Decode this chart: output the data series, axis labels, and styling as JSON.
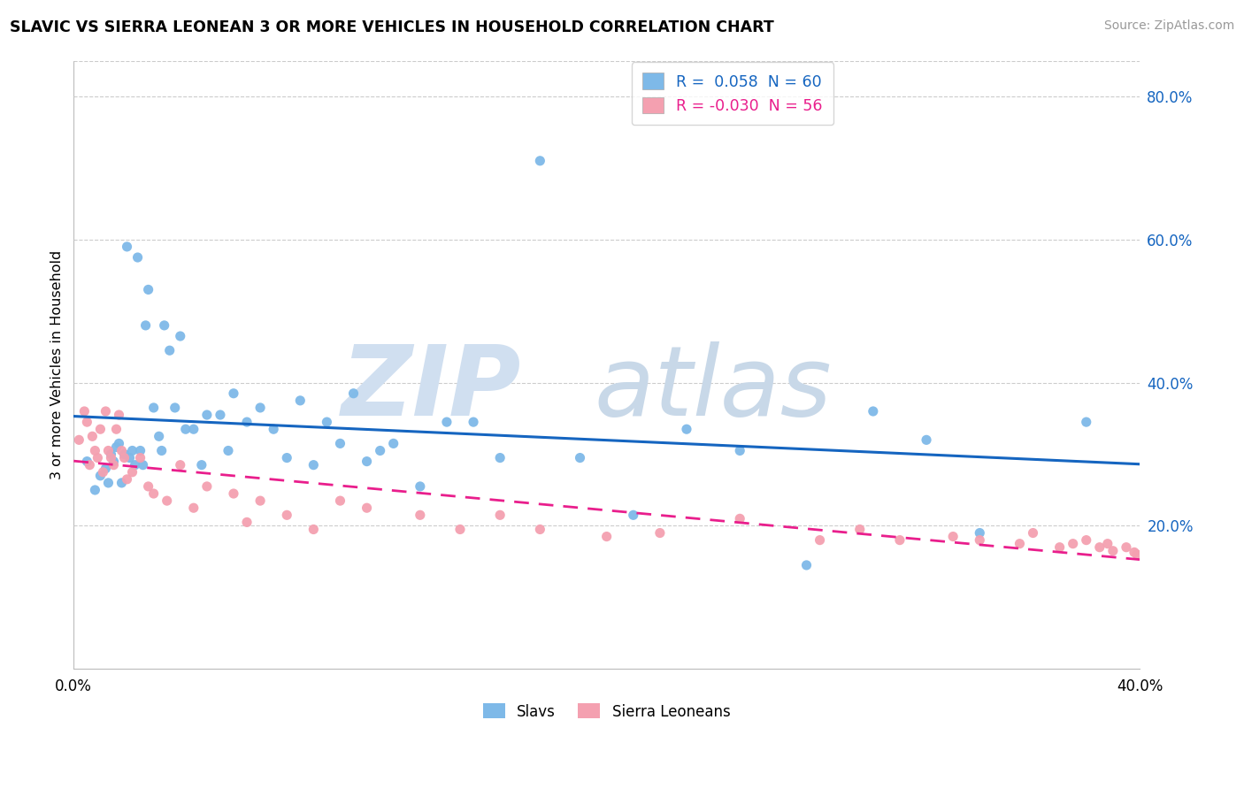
{
  "title": "SLAVIC VS SIERRA LEONEAN 3 OR MORE VEHICLES IN HOUSEHOLD CORRELATION CHART",
  "source": "Source: ZipAtlas.com",
  "ylabel": "3 or more Vehicles in Household",
  "xlim": [
    0.0,
    0.4
  ],
  "ylim": [
    0.0,
    0.85
  ],
  "x_tick_labels": [
    "0.0%",
    "",
    "",
    "",
    "40.0%"
  ],
  "y_ticks_right": [
    0.2,
    0.4,
    0.6,
    0.8
  ],
  "y_tick_labels_right": [
    "20.0%",
    "40.0%",
    "60.0%",
    "80.0%"
  ],
  "color_slavs": "#7EB9E8",
  "color_sierra": "#F4A0B0",
  "line_color_slavs": "#1565C0",
  "line_color_sierra": "#E91E8C",
  "legend_r1": "R =  0.058  N = 60",
  "legend_r2": "R = -0.030  N = 56",
  "legend_label1": "Slavs",
  "legend_label2": "Sierra Leoneans",
  "slavs_x": [
    0.005,
    0.008,
    0.01,
    0.012,
    0.013,
    0.014,
    0.015,
    0.016,
    0.017,
    0.018,
    0.019,
    0.02,
    0.021,
    0.022,
    0.023,
    0.024,
    0.025,
    0.026,
    0.027,
    0.028,
    0.03,
    0.032,
    0.033,
    0.034,
    0.036,
    0.038,
    0.04,
    0.042,
    0.045,
    0.048,
    0.05,
    0.055,
    0.058,
    0.06,
    0.065,
    0.07,
    0.075,
    0.08,
    0.085,
    0.09,
    0.095,
    0.1,
    0.105,
    0.11,
    0.115,
    0.12,
    0.13,
    0.14,
    0.15,
    0.16,
    0.175,
    0.19,
    0.21,
    0.23,
    0.25,
    0.275,
    0.3,
    0.32,
    0.34,
    0.38
  ],
  "slavs_y": [
    0.29,
    0.25,
    0.27,
    0.28,
    0.26,
    0.3,
    0.29,
    0.31,
    0.315,
    0.26,
    0.3,
    0.59,
    0.295,
    0.305,
    0.285,
    0.575,
    0.305,
    0.285,
    0.48,
    0.53,
    0.365,
    0.325,
    0.305,
    0.48,
    0.445,
    0.365,
    0.465,
    0.335,
    0.335,
    0.285,
    0.355,
    0.355,
    0.305,
    0.385,
    0.345,
    0.365,
    0.335,
    0.295,
    0.375,
    0.285,
    0.345,
    0.315,
    0.385,
    0.29,
    0.305,
    0.315,
    0.255,
    0.345,
    0.345,
    0.295,
    0.71,
    0.295,
    0.215,
    0.335,
    0.305,
    0.145,
    0.36,
    0.32,
    0.19,
    0.345
  ],
  "sierra_x": [
    0.002,
    0.004,
    0.005,
    0.006,
    0.007,
    0.008,
    0.009,
    0.01,
    0.011,
    0.012,
    0.013,
    0.014,
    0.015,
    0.016,
    0.017,
    0.018,
    0.019,
    0.02,
    0.022,
    0.025,
    0.028,
    0.03,
    0.035,
    0.04,
    0.045,
    0.05,
    0.06,
    0.065,
    0.07,
    0.08,
    0.09,
    0.1,
    0.11,
    0.13,
    0.145,
    0.16,
    0.175,
    0.2,
    0.22,
    0.25,
    0.28,
    0.295,
    0.31,
    0.33,
    0.34,
    0.355,
    0.36,
    0.37,
    0.375,
    0.38,
    0.385,
    0.388,
    0.39,
    0.395,
    0.398,
    0.399
  ],
  "sierra_y": [
    0.32,
    0.36,
    0.345,
    0.285,
    0.325,
    0.305,
    0.295,
    0.335,
    0.275,
    0.36,
    0.305,
    0.295,
    0.285,
    0.335,
    0.355,
    0.305,
    0.295,
    0.265,
    0.275,
    0.295,
    0.255,
    0.245,
    0.235,
    0.285,
    0.225,
    0.255,
    0.245,
    0.205,
    0.235,
    0.215,
    0.195,
    0.235,
    0.225,
    0.215,
    0.195,
    0.215,
    0.195,
    0.185,
    0.19,
    0.21,
    0.18,
    0.195,
    0.18,
    0.185,
    0.18,
    0.175,
    0.19,
    0.17,
    0.175,
    0.18,
    0.17,
    0.175,
    0.165,
    0.17,
    0.163,
    0.16
  ]
}
